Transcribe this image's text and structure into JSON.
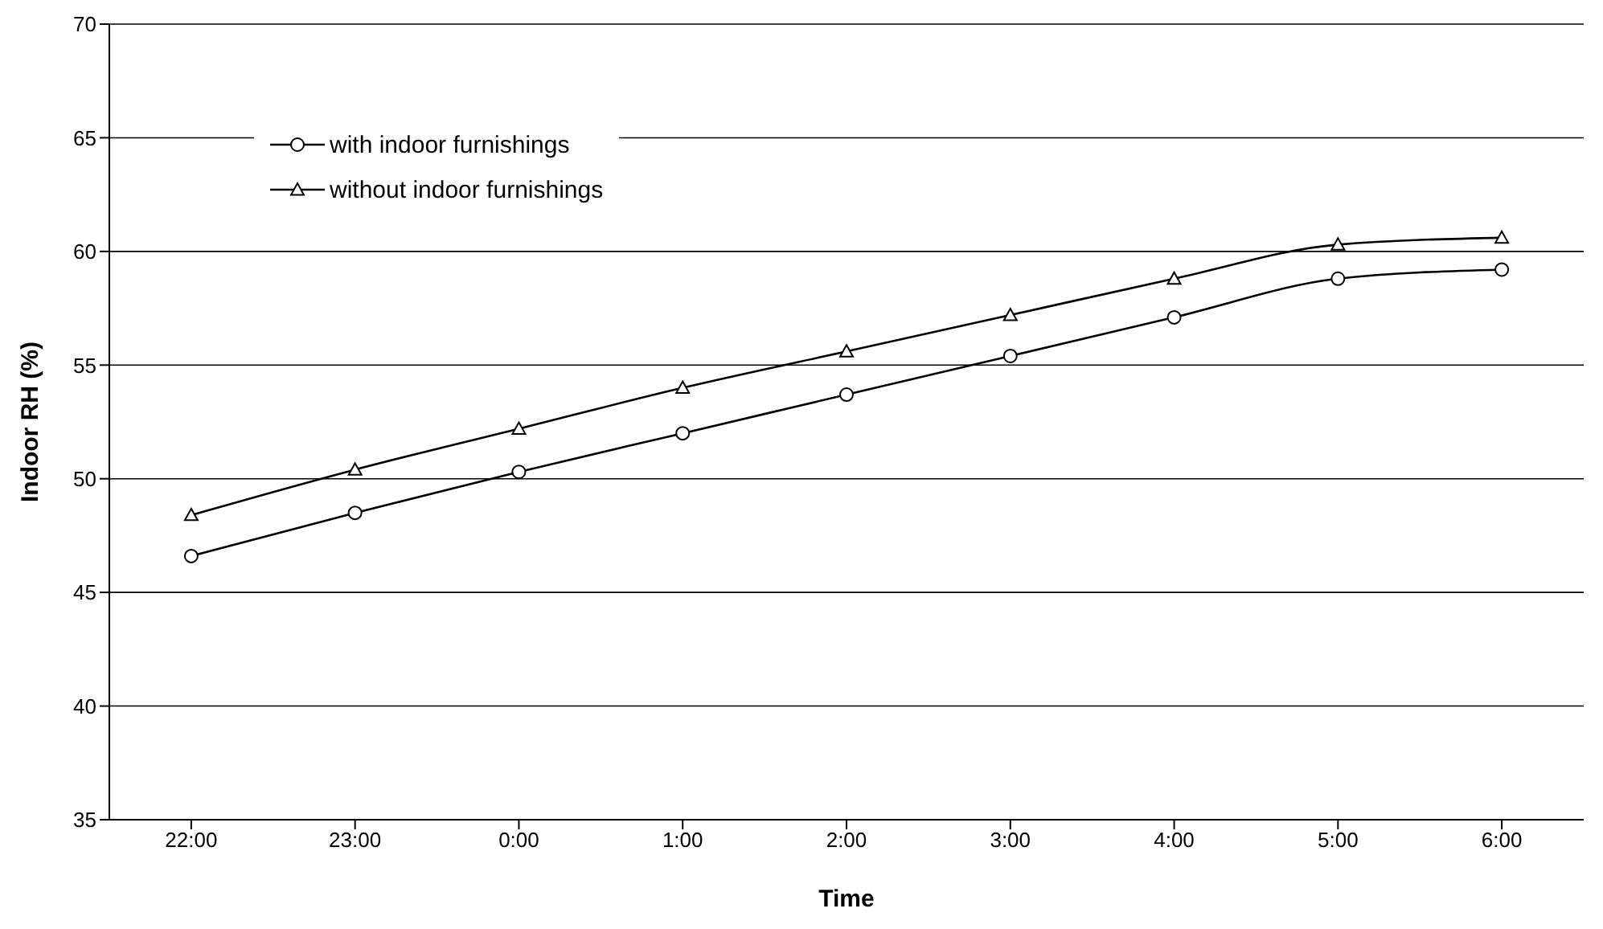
{
  "chart_data": {
    "type": "line",
    "xlabel": "Time",
    "ylabel": "Indoor RH (%)",
    "categories": [
      "22:00",
      "23:00",
      "0:00",
      "1:00",
      "2:00",
      "3:00",
      "4:00",
      "5:00",
      "6:00"
    ],
    "series": [
      {
        "name": "with indoor furnishings",
        "color": "#000000",
        "marker": "circle",
        "values": [
          46.6,
          48.5,
          50.3,
          52.0,
          53.7,
          55.4,
          57.1,
          58.8,
          59.2
        ]
      },
      {
        "name": "without indoor furnishings",
        "color": "#000000",
        "marker": "triangle",
        "values": [
          48.4,
          50.4,
          52.2,
          54.0,
          55.6,
          57.2,
          58.8,
          60.3,
          60.6
        ]
      }
    ],
    "ylim": [
      35,
      70
    ],
    "yticks": [
      35,
      40,
      45,
      50,
      55,
      60,
      65,
      70
    ],
    "grid": "y",
    "legend": "top left",
    "line_style": "solid"
  }
}
